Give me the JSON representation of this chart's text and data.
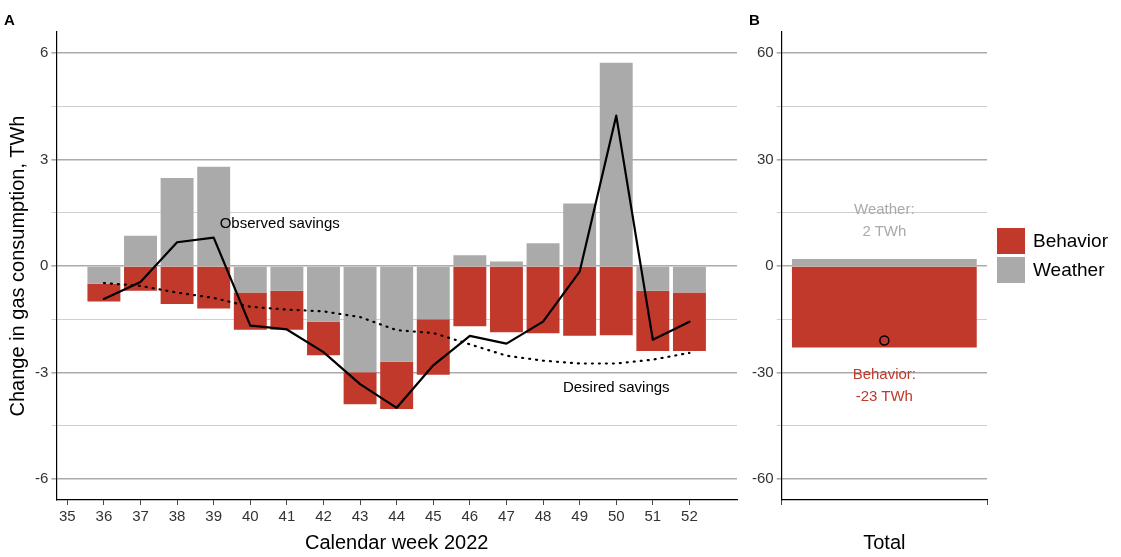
{
  "chart_data": [
    {
      "type": "bar",
      "title": "A",
      "xlabel": "Calendar week 2022",
      "ylabel": "Change in gas consumption, TWh",
      "x": [
        36,
        37,
        38,
        39,
        40,
        41,
        42,
        43,
        44,
        45,
        46,
        47,
        48,
        49,
        50,
        51,
        52
      ],
      "xlim": [
        34.7,
        53.3
      ],
      "xticks": [
        35,
        36,
        37,
        38,
        39,
        40,
        41,
        42,
        43,
        44,
        45,
        46,
        47,
        48,
        49,
        50,
        51,
        52
      ],
      "ylim": [
        -6.6,
        6.6
      ],
      "yticks": [
        -6,
        {
          "value": -4.5,
          "label": null
        },
        -3,
        {
          "value": -1.5,
          "label": null
        },
        0,
        {
          "value": 1.5,
          "label": null
        },
        3,
        {
          "value": 4.5,
          "label": null
        },
        6
      ],
      "stacked": true,
      "grid": "y",
      "series": [
        {
          "color": "#aaaaaa",
          "values": [
            -0.5,
            0.85,
            2.48,
            2.8,
            -0.75,
            -0.7,
            -1.57,
            -3.0,
            -2.7,
            -1.5,
            0.3,
            0.13,
            0.64,
            1.76,
            5.73,
            -0.7,
            -0.75
          ]
        },
        {
          "color": "#c0392b",
          "values": [
            -0.5,
            -0.7,
            -1.07,
            -1.2,
            -1.05,
            -1.1,
            -0.95,
            -0.9,
            -1.33,
            -1.57,
            -1.7,
            -1.87,
            -1.9,
            -1.97,
            -1.95,
            -1.7,
            -1.65
          ]
        },
        {
          "name": "Observed savings",
          "type": "line",
          "color": "#000000",
          "line_style": "solid",
          "values": [
            -0.93,
            -0.45,
            0.67,
            0.8,
            -1.68,
            -1.79,
            -2.43,
            -3.33,
            -4.0,
            -2.8,
            -1.97,
            -2.19,
            -1.57,
            -0.16,
            4.24,
            -2.08,
            -1.57
          ]
        },
        {
          "name": "Desired savings",
          "type": "line",
          "color": "#000000",
          "line_style": "dotted",
          "values": [
            -0.48,
            -0.56,
            -0.75,
            -0.9,
            -1.15,
            -1.23,
            -1.28,
            -1.44,
            -1.81,
            -1.89,
            -2.21,
            -2.53,
            -2.67,
            -2.75,
            -2.75,
            -2.64,
            -2.45
          ]
        }
      ]
    },
    {
      "type": "bar",
      "title": "B",
      "xlabel": "Total",
      "categories": [
        null
      ],
      "ylim": [
        -66,
        66
      ],
      "yticks": [
        -60,
        {
          "value": -45,
          "label": null
        },
        -30,
        {
          "value": -15,
          "label": null
        },
        0,
        {
          "value": 15,
          "label": null
        },
        30,
        {
          "value": 45,
          "label": null
        },
        60
      ],
      "stacked": true,
      "grid": "y",
      "legend": "right",
      "marker": "circle",
      "series": [
        {
          "name": "Weather",
          "color": "#aaaaaa",
          "values": [
            2
          ]
        },
        {
          "name": "Behavior",
          "color": "#c0392b",
          "values": [
            -23
          ]
        },
        {
          "type": "scatter",
          "color": "#000000",
          "values": [
            -21
          ]
        }
      ],
      "annotations": [
        "Weather:\n2 TWh",
        "Behavior:\n-23 TWh"
      ]
    }
  ]
}
